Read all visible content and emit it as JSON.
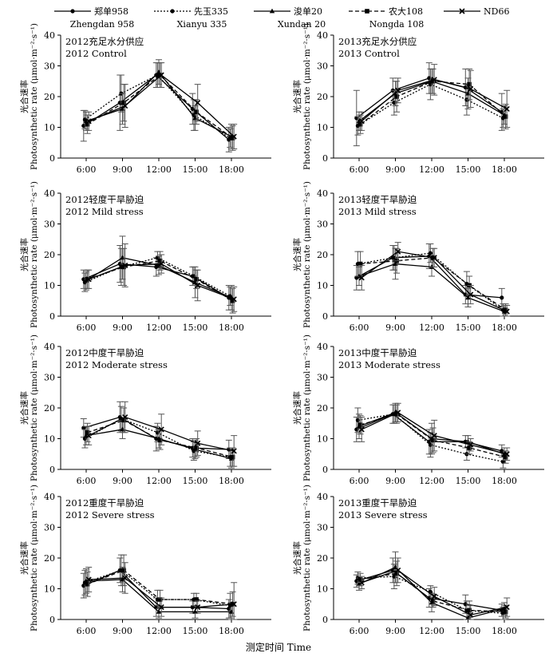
{
  "chart_data": {
    "type": "line",
    "x_title": "测定时间 Time",
    "legend": [
      {
        "cn": "郑单958",
        "en": "Zhengdan 958",
        "dash": "solid",
        "marker": "dot"
      },
      {
        "cn": "先玉335",
        "en": "Xianyu 335",
        "dash": "dotted",
        "marker": "dot"
      },
      {
        "cn": "浚单20",
        "en": "Xundan 20",
        "dash": "solid",
        "marker": "triangle"
      },
      {
        "cn": "农大108",
        "en": "Nongda 108",
        "dash": "dashed",
        "marker": "square"
      },
      {
        "cn": "ND66",
        "en": "",
        "dash": "solid",
        "marker": "cross"
      }
    ],
    "panels": [
      {
        "label_cn": "2012充足水分供应",
        "label_en": "2012 Control",
        "ylabel_cn": "光合速率",
        "ylabel_en": "Photosynthetic rate (μmol·m⁻²·s⁻¹)",
        "categories": [
          "6:00",
          "9:00",
          "12:00",
          "15:00",
          "18:00"
        ],
        "ylim": [
          0,
          40
        ],
        "yticks": [
          0,
          10,
          20,
          30,
          40
        ],
        "series": [
          {
            "values": [
              10.5,
              18,
              27,
              16,
              6
            ],
            "err": [
              5,
              9,
              4,
              5,
              4
            ]
          },
          {
            "values": [
              12.5,
              21,
              27,
              14,
              6.5
            ],
            "err": [
              3,
              6,
              4,
              5,
              3
            ]
          },
          {
            "values": [
              12,
              16,
              28,
              13,
              7
            ],
            "err": [
              3,
              5,
              4,
              4,
              4
            ]
          },
          {
            "values": [
              11,
              18,
              27,
              15,
              6.5
            ],
            "err": [
              3,
              6,
              4,
              4,
              4
            ]
          },
          {
            "values": [
              12,
              17,
              27,
              18,
              7
            ],
            "err": [
              3,
              7,
              4,
              6,
              4
            ]
          }
        ]
      },
      {
        "label_cn": "2013充足水分供应",
        "label_en": "2013 Control",
        "ylabel_cn": "光合速率",
        "ylabel_en": "Photosynthetic rate (μmol·m⁻²·s⁻¹)",
        "categories": [
          "6:00",
          "9:00",
          "12:00",
          "15:00",
          "18:00"
        ],
        "ylim": [
          0,
          40
        ],
        "yticks": [
          0,
          10,
          20,
          30,
          40
        ],
        "series": [
          {
            "values": [
              13,
              22,
              26,
              23,
              15
            ],
            "err": [
              9,
              4,
              5,
              6,
              6
            ]
          },
          {
            "values": [
              10.5,
              18,
              24,
              19,
              13
            ],
            "err": [
              3,
              4,
              5,
              5,
              3
            ]
          },
          {
            "values": [
              12,
              21,
              25,
              21,
              14
            ],
            "err": [
              3,
              4,
              4,
              5,
              3
            ]
          },
          {
            "values": [
              11,
              20,
              25,
              24,
              13.5
            ],
            "err": [
              3,
              5,
              4,
              5,
              4
            ]
          },
          {
            "values": [
              12,
              22,
              25.5,
              22.5,
              16
            ],
            "err": [
              3,
              4,
              5,
              6,
              6
            ]
          }
        ]
      },
      {
        "label_cn": "2012轻度干旱胁迫",
        "label_en": "2012 Mild stress",
        "ylabel_cn": "光合速率",
        "ylabel_en": "Photosynthetic rate (μmol·m⁻²·s⁻¹)",
        "categories": [
          "6:00",
          "9:00",
          "12:00",
          "15:00",
          "18:00"
        ],
        "ylim": [
          0,
          40
        ],
        "yticks": [
          0,
          10,
          20,
          30,
          40
        ],
        "series": [
          {
            "values": [
              12,
              17,
              16,
              13,
              6
            ],
            "err": [
              3,
              6,
              3,
              3,
              4
            ]
          },
          {
            "values": [
              11,
              16,
              19,
              13,
              6.5
            ],
            "err": [
              3,
              6,
              2,
              3,
              3
            ]
          },
          {
            "values": [
              11.5,
              19,
              16.5,
              11,
              6
            ],
            "err": [
              3,
              7,
              3,
              5,
              4
            ]
          },
          {
            "values": [
              12,
              16,
              18,
              12,
              5
            ],
            "err": [
              3,
              6,
              3,
              3,
              4
            ]
          },
          {
            "values": [
              12,
              16.5,
              17,
              10,
              5.5
            ],
            "err": [
              3,
              7,
              3,
              5,
              4
            ]
          }
        ]
      },
      {
        "label_cn": "2013轻度干旱胁迫",
        "label_en": "2013 Mild stress",
        "ylabel_cn": "光合速率",
        "ylabel_en": "Photosynthetic rate (μmol·m⁻²·s⁻¹)",
        "categories": [
          "6:00",
          "9:00",
          "12:00",
          "15:00",
          "18:00"
        ],
        "ylim": [
          0,
          40
        ],
        "yticks": [
          0,
          10,
          20,
          30,
          40
        ],
        "series": [
          {
            "values": [
              12.5,
              19,
              19.5,
              7,
              6
            ],
            "err": [
              4,
              4,
              4,
              3,
              3
            ]
          },
          {
            "values": [
              17,
              19,
              20.5,
              10.5,
              2
            ],
            "err": [
              4,
              4,
              3,
              4,
              2
            ]
          },
          {
            "values": [
              13,
              17,
              16,
              6,
              1.5
            ],
            "err": [
              3,
              5,
              3,
              3,
              2
            ]
          },
          {
            "values": [
              17,
              18,
              19,
              10,
              2
            ],
            "err": [
              4,
              4,
              3,
              3,
              2
            ]
          },
          {
            "values": [
              12.5,
              21,
              19,
              7,
              1.5
            ],
            "err": [
              4,
              3,
              3,
              3,
              2
            ]
          }
        ]
      },
      {
        "label_cn": "2012中度干旱胁迫",
        "label_en": "2012 Moderate stress",
        "ylabel_cn": "光合速率",
        "ylabel_en": "Photosynthetic rate (μmol·m⁻²·s⁻¹)",
        "categories": [
          "6:00",
          "9:00",
          "12:00",
          "15:00",
          "18:00"
        ],
        "ylim": [
          0,
          40
        ],
        "yticks": [
          0,
          10,
          20,
          30,
          40
        ],
        "series": [
          {
            "values": [
              13.5,
              17,
              10,
              7,
              6.5
            ],
            "err": [
              3,
              5,
              4,
              3,
              3
            ]
          },
          {
            "values": [
              10,
              16.5,
              12,
              6,
              4
            ],
            "err": [
              3,
              4,
              3,
              3,
              3
            ]
          },
          {
            "values": [
              11,
              13,
              10,
              6.5,
              3.5
            ],
            "err": [
              3,
              3,
              3,
              3,
              3
            ]
          },
          {
            "values": [
              12,
              16,
              9.5,
              7,
              4
            ],
            "err": [
              3,
              4,
              3,
              3,
              3
            ]
          },
          {
            "values": [
              11,
              17,
              13,
              8.5,
              6
            ],
            "err": [
              3,
              5,
              5,
              4,
              5
            ]
          }
        ]
      },
      {
        "label_cn": "2013中度干旱胁迫",
        "label_en": "2013 Moderate stress",
        "ylabel_cn": "光合速率",
        "ylabel_en": "Photosynthetic rate (μmol·m⁻²·s⁻¹)",
        "categories": [
          "6:00",
          "9:00",
          "12:00",
          "15:00",
          "18:00"
        ],
        "ylim": [
          0,
          40
        ],
        "yticks": [
          0,
          10,
          20,
          30,
          40
        ],
        "series": [
          {
            "values": [
              13,
              18,
              9,
              9,
              6
            ],
            "err": [
              4,
              3,
              4,
              2,
              2
            ]
          },
          {
            "values": [
              16,
              18,
              8,
              5,
              2.5
            ],
            "err": [
              4,
              3,
              4,
              2,
              2
            ]
          },
          {
            "values": [
              14,
              18.5,
              10,
              9,
              5
            ],
            "err": [
              4,
              3,
              5,
              2,
              2
            ]
          },
          {
            "values": [
              14.5,
              18,
              9.5,
              7,
              4
            ],
            "err": [
              3,
              3,
              4,
              2,
              2
            ]
          },
          {
            "values": [
              13,
              18.5,
              11,
              8,
              5
            ],
            "err": [
              4,
              3,
              5,
              2,
              2
            ]
          }
        ]
      },
      {
        "label_cn": "2012重度干旱胁迫",
        "label_en": "2012 Severe stress",
        "ylabel_cn": "光合速率",
        "ylabel_en": "Photosynthetic rate (μmol·m⁻²·s⁻¹)",
        "categories": [
          "6:00",
          "9:00",
          "12:00",
          "15:00",
          "18:00"
        ],
        "ylim": [
          0,
          40
        ],
        "yticks": [
          0,
          10,
          20,
          30,
          40
        ],
        "series": [
          {
            "values": [
              11,
              16,
              4,
              4,
              3.5
            ],
            "err": [
              4,
              4,
              3,
              2,
              3
            ]
          },
          {
            "values": [
              12,
              16,
              6.5,
              6.5,
              4.5
            ],
            "err": [
              4,
              5,
              3,
              2,
              4
            ]
          },
          {
            "values": [
              12.5,
              13,
              2.5,
              2.5,
              2.5
            ],
            "err": [
              4,
              4,
              2,
              2,
              3
            ]
          },
          {
            "values": [
              11.5,
              16,
              6.5,
              6.5,
              5
            ],
            "err": [
              4,
              5,
              3,
              2,
              4
            ]
          },
          {
            "values": [
              13,
              13.5,
              4,
              4,
              5
            ],
            "err": [
              4,
              5,
              3,
              2,
              7
            ]
          }
        ]
      },
      {
        "label_cn": "2013重度干旱胁迫",
        "label_en": "2013 Severe stress",
        "ylabel_cn": "光合速率",
        "ylabel_en": "Photosynthetic rate (μmol·m⁻²·s⁻¹)",
        "categories": [
          "6:00",
          "9:00",
          "12:00",
          "15:00",
          "18:00"
        ],
        "ylim": [
          0,
          40
        ],
        "yticks": [
          0,
          10,
          20,
          30,
          40
        ],
        "series": [
          {
            "values": [
              12.5,
              16,
              7,
              5,
              3
            ],
            "err": [
              2,
              4,
              3,
              3,
              2
            ]
          },
          {
            "values": [
              13.5,
              14,
              9,
              3,
              2
            ],
            "err": [
              2,
              4,
              2,
              3,
              2
            ]
          },
          {
            "values": [
              11.5,
              17,
              5.5,
              0.5,
              3.5
            ],
            "err": [
              2,
              5,
              3,
              3,
              2
            ]
          },
          {
            "values": [
              13,
              15,
              6,
              3,
              2.5
            ],
            "err": [
              2,
              4,
              2,
              3,
              2
            ]
          },
          {
            "values": [
              12,
              16,
              7.5,
              1.5,
              4
            ],
            "err": [
              2,
              4,
              3,
              3,
              3
            ]
          }
        ]
      }
    ]
  }
}
